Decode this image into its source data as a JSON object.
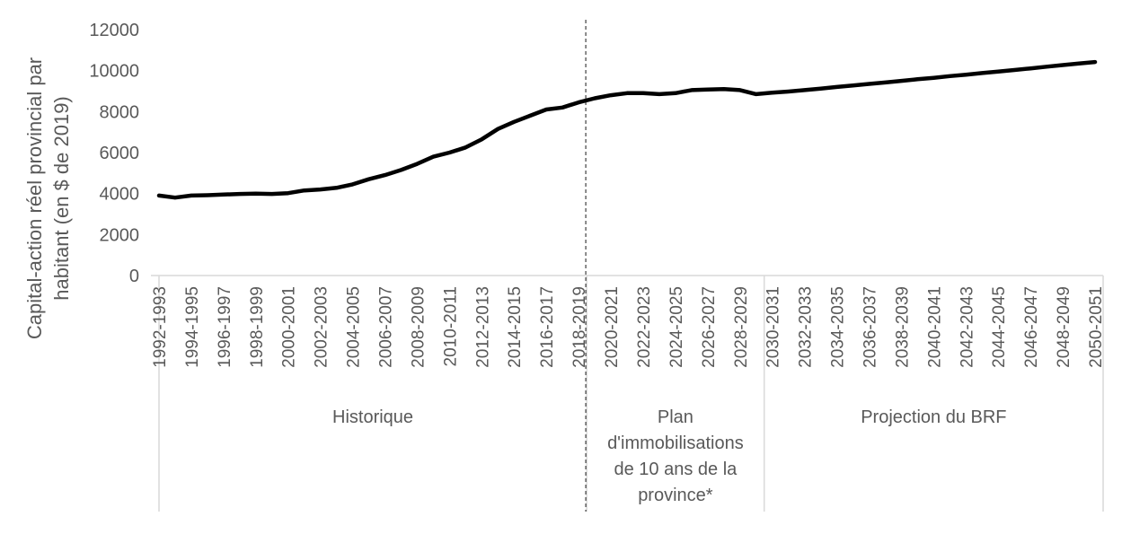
{
  "chart_data": {
    "type": "line",
    "title": "",
    "ylabel_lines": [
      "Capital-action réel provincial par",
      "habitant (en $ de 2019)"
    ],
    "ylim": [
      0,
      12000
    ],
    "yticks": [
      0,
      2000,
      4000,
      6000,
      8000,
      10000,
      12000
    ],
    "grid": false,
    "x": [
      "1992-1993",
      "1993-1994",
      "1994-1995",
      "1995-1996",
      "1996-1997",
      "1997-1998",
      "1998-1999",
      "1999-2000",
      "2000-2001",
      "2001-2002",
      "2002-2003",
      "2003-2004",
      "2004-2005",
      "2005-2006",
      "2006-2007",
      "2007-2008",
      "2008-2009",
      "2009-2010",
      "2010-2011",
      "2011-2012",
      "2012-2013",
      "2013-2014",
      "2014-2015",
      "2015-2016",
      "2016-2017",
      "2017-2018",
      "2018-2019",
      "2019-2020",
      "2020-2021",
      "2021-2022",
      "2022-2023",
      "2023-2024",
      "2024-2025",
      "2025-2026",
      "2026-2027",
      "2027-2028",
      "2028-2029",
      "2029-2030",
      "2030-2031",
      "2031-2032",
      "2032-2033",
      "2033-2034",
      "2034-2035",
      "2035-2036",
      "2036-2037",
      "2037-2038",
      "2038-2039",
      "2039-2040",
      "2040-2041",
      "2041-2042",
      "2042-2043",
      "2043-2044",
      "2044-2045",
      "2045-2046",
      "2046-2047",
      "2047-2048",
      "2048-2049",
      "2049-2050",
      "2050-2051"
    ],
    "xtick_labels": [
      "1992-1993",
      "1994-1995",
      "1996-1997",
      "1998-1999",
      "2000-2001",
      "2002-2003",
      "2004-2005",
      "2006-2007",
      "2008-2009",
      "2010-2011",
      "2012-2013",
      "2014-2015",
      "2016-2017",
      "2018-2019",
      "2020-2021",
      "2022-2023",
      "2024-2025",
      "2026-2027",
      "2028-2029",
      "2030-2031",
      "2032-2033",
      "2034-2035",
      "2036-2037",
      "2038-2039",
      "2040-2041",
      "2042-2043",
      "2044-2045",
      "2046-2047",
      "2048-2049",
      "2050-2051"
    ],
    "series": [
      {
        "values": [
          3900,
          3800,
          3900,
          3920,
          3950,
          3980,
          4000,
          3980,
          4020,
          4150,
          4200,
          4280,
          4450,
          4700,
          4900,
          5150,
          5450,
          5800,
          6000,
          6250,
          6650,
          7150,
          7500,
          7800,
          8100,
          8200,
          8450,
          8650,
          8800,
          8900,
          8900,
          8850,
          8900,
          9050,
          9080,
          9100,
          9050,
          8850,
          8920,
          8980,
          9050,
          9120,
          9200,
          9270,
          9350,
          9420,
          9500,
          9580,
          9650,
          9730,
          9800,
          9880,
          9950,
          10030,
          10110,
          10190,
          10270,
          10350,
          10420
        ],
        "color": "#000000"
      }
    ],
    "divider_after": "2018-2019",
    "groups": [
      {
        "label_lines": [
          "Historique"
        ],
        "start": "1992-1993",
        "end": "2018-2019"
      },
      {
        "label_lines": [
          "Plan",
          "d'immobilisations",
          "de 10 ans de la",
          "province*"
        ],
        "start": "2019-2020",
        "end": "2029-2030"
      },
      {
        "label_lines": [
          "Projection du BRF"
        ],
        "start": "2030-2031",
        "end": "2050-2051"
      }
    ],
    "colors": {
      "axis": "#d9d9d9",
      "text": "#595959",
      "line": "#000000",
      "divider": "#404040"
    }
  }
}
